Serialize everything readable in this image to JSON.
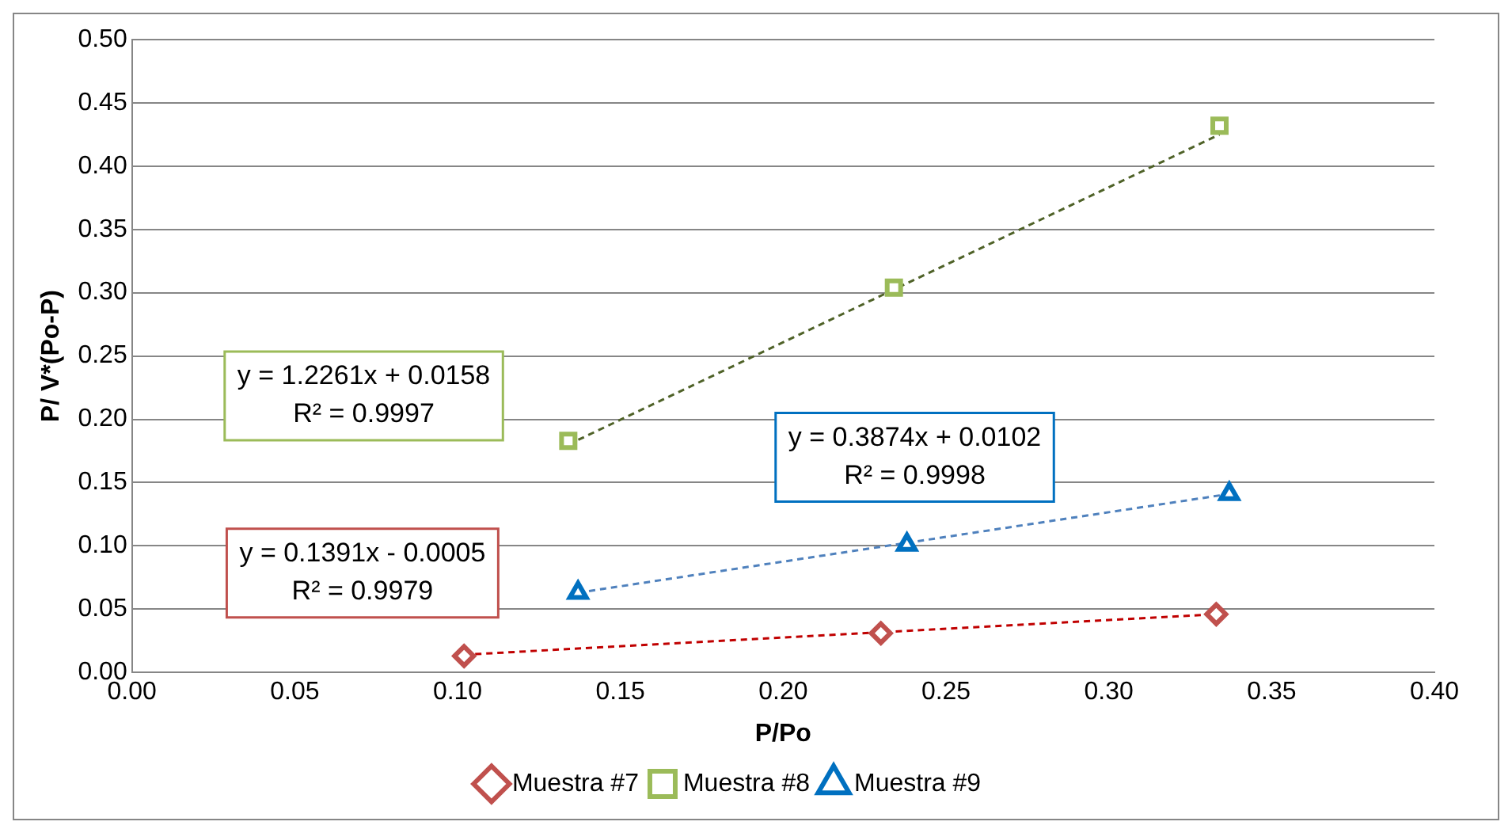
{
  "chart_data": {
    "type": "scatter",
    "xlabel": "P/Po",
    "ylabel": "P/ V*(Po-P)",
    "xlim": [
      0,
      0.4
    ],
    "ylim": [
      0,
      0.5
    ],
    "xticks": [
      {
        "value": 0,
        "label": "0.00"
      },
      {
        "value": 0.05,
        "label": "0.05"
      },
      {
        "value": 0.1,
        "label": "0.10"
      },
      {
        "value": 0.15,
        "label": "0.15"
      },
      {
        "value": 0.2,
        "label": "0.20"
      },
      {
        "value": 0.25,
        "label": "0.25"
      },
      {
        "value": 0.3,
        "label": "0.30"
      },
      {
        "value": 0.35,
        "label": "0.35"
      },
      {
        "value": 0.4,
        "label": "0.40"
      }
    ],
    "yticks": [
      {
        "value": 0,
        "label": "0.00"
      },
      {
        "value": 0.05,
        "label": "0.05"
      },
      {
        "value": 0.1,
        "label": "0.10"
      },
      {
        "value": 0.15,
        "label": "0.15"
      },
      {
        "value": 0.2,
        "label": "0.20"
      },
      {
        "value": 0.25,
        "label": "0.25"
      },
      {
        "value": 0.3,
        "label": "0.30"
      },
      {
        "value": 0.35,
        "label": "0.35"
      },
      {
        "value": 0.4,
        "label": "0.40"
      },
      {
        "value": 0.45,
        "label": "0.45"
      },
      {
        "value": 0.5,
        "label": "0.50"
      }
    ],
    "grid": "y",
    "legend": "bottom",
    "series": [
      {
        "name": "Muestra #7",
        "type": "scatter",
        "marker": "diamond",
        "color": "#c0504d",
        "x": [
          0.102,
          0.23,
          0.333
        ],
        "values": [
          0.013,
          0.031,
          0.046
        ]
      },
      {
        "name": "Muestra #8",
        "type": "scatter",
        "marker": "square",
        "color": "#9bbb59",
        "x": [
          0.134,
          0.234,
          0.334
        ],
        "values": [
          0.183,
          0.304,
          0.432
        ]
      },
      {
        "name": "Muestra #9",
        "type": "scatter",
        "marker": "triangle",
        "color": "#0070c0",
        "x": [
          0.137,
          0.238,
          0.337
        ],
        "values": [
          0.063,
          0.101,
          0.141
        ]
      },
      {
        "type": "line",
        "line_style": "dashed",
        "color": "#c00000",
        "x": [
          0.102,
          0.333
        ],
        "values": [
          0.014,
          0.046
        ]
      },
      {
        "type": "line",
        "line_style": "dashed",
        "color": "#4f6228",
        "x": [
          0.134,
          0.334
        ],
        "values": [
          0.18,
          0.425
        ]
      },
      {
        "type": "line",
        "line_style": "dashed",
        "color": "#4f81bd",
        "x": [
          0.137,
          0.337
        ],
        "values": [
          0.063,
          0.141
        ]
      }
    ],
    "annotations": [
      "y = 0.1391x - 0.0005\nR² = 0.9979",
      "y = 1.2261x + 0.0158\nR² = 0.9997",
      "y = 0.3874x + 0.0102\nR² = 0.9998"
    ]
  }
}
